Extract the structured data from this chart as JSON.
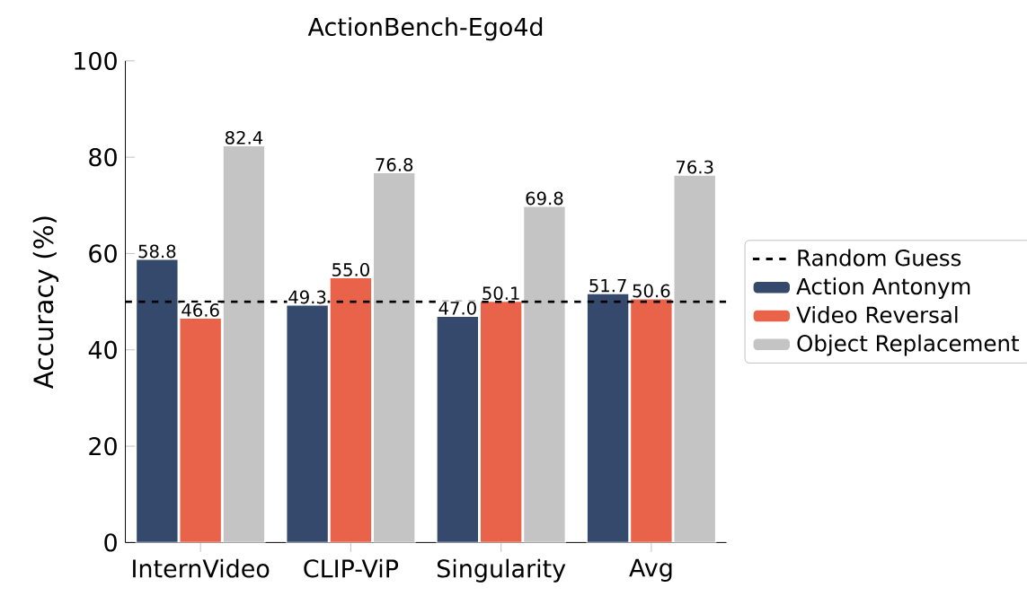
{
  "chart_data": {
    "type": "bar",
    "title": "ActionBench-Ego4d",
    "ylabel": "Accuracy (%)",
    "categories": [
      "InternVideo",
      "CLIP-ViP",
      "Singularity",
      "Avg"
    ],
    "series": [
      {
        "name": "Action Antonym",
        "color": "#34496b",
        "values": [
          58.8,
          49.3,
          47.0,
          51.7
        ],
        "value_labels": [
          "58.8",
          "49.3",
          "47.0",
          "51.7"
        ]
      },
      {
        "name": "Video Reversal",
        "color": "#e8634a",
        "values": [
          46.6,
          55.0,
          50.1,
          50.6
        ],
        "value_labels": [
          "46.6",
          "55.0",
          "50.1",
          "50.6"
        ]
      },
      {
        "name": "Object Replacement",
        "color": "#c4c4c4",
        "values": [
          82.4,
          76.8,
          69.8,
          76.3
        ],
        "value_labels": [
          "82.4",
          "76.8",
          "69.8",
          "76.3"
        ]
      }
    ],
    "ylim": [
      0,
      100
    ],
    "yticks": [
      0,
      20,
      40,
      60,
      80,
      100
    ],
    "ref_lines": [
      {
        "axis": "y",
        "value": 50,
        "label": "Random Guess",
        "color": "#000000",
        "line_style": "dashed"
      }
    ],
    "legend": "right",
    "grid": false
  }
}
